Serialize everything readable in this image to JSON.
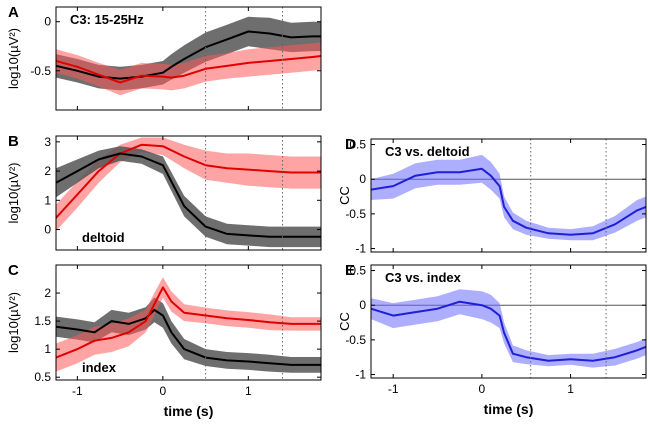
{
  "chart_data": [
    {
      "id": "A",
      "type": "line",
      "panel_letter": "A",
      "title": "C3: 15-25Hz",
      "title_pos": "top-left",
      "xlabel": "",
      "ylabel": "log10(µV²)",
      "xlim": [
        -1.25,
        1.85
      ],
      "ylim": [
        -0.9,
        0.15
      ],
      "xticks": [],
      "xtick_labels": [],
      "yticks": [
        -0.5,
        0
      ],
      "ytick_labels": [
        "-0.5",
        "0"
      ],
      "vlines": [
        0.5,
        1.4
      ],
      "hline": null,
      "series": [
        {
          "name": "black",
          "color": "#000000",
          "band_color": "#555555",
          "band_opacity": 0.85,
          "x": [
            -1.25,
            -1.0,
            -0.75,
            -0.5,
            -0.25,
            0.0,
            0.1,
            0.25,
            0.5,
            0.75,
            1.0,
            1.25,
            1.5,
            1.75,
            1.85
          ],
          "y": [
            -0.45,
            -0.5,
            -0.56,
            -0.58,
            -0.56,
            -0.52,
            -0.46,
            -0.38,
            -0.26,
            -0.18,
            -0.1,
            -0.12,
            -0.16,
            -0.15,
            -0.15
          ],
          "err": [
            0.12,
            0.12,
            0.12,
            0.12,
            0.12,
            0.12,
            0.13,
            0.14,
            0.15,
            0.15,
            0.15,
            0.16,
            0.15,
            0.15,
            0.15
          ]
        },
        {
          "name": "red",
          "color": "#e00000",
          "band_color": "#ff5a5a",
          "band_opacity": 0.55,
          "x": [
            -1.25,
            -1.0,
            -0.75,
            -0.5,
            -0.25,
            0.0,
            0.1,
            0.25,
            0.5,
            0.75,
            1.0,
            1.25,
            1.5,
            1.75,
            1.85
          ],
          "y": [
            -0.4,
            -0.46,
            -0.54,
            -0.62,
            -0.55,
            -0.56,
            -0.57,
            -0.55,
            -0.48,
            -0.45,
            -0.42,
            -0.4,
            -0.38,
            -0.36,
            -0.35
          ],
          "err": [
            0.12,
            0.12,
            0.12,
            0.13,
            0.13,
            0.13,
            0.13,
            0.13,
            0.13,
            0.13,
            0.14,
            0.14,
            0.14,
            0.14,
            0.14
          ]
        }
      ]
    },
    {
      "id": "B",
      "type": "line",
      "panel_letter": "B",
      "title": "deltoid",
      "title_pos": "bottom-left",
      "xlabel": "",
      "ylabel": "log10(µV²)",
      "xlim": [
        -1.25,
        1.85
      ],
      "ylim": [
        -0.7,
        3.2
      ],
      "xticks": [],
      "xtick_labels": [],
      "yticks": [
        0,
        1,
        2,
        3
      ],
      "ytick_labels": [
        "0",
        "1",
        "2",
        "3"
      ],
      "vlines": [
        0.5,
        1.4
      ],
      "hline": null,
      "series": [
        {
          "name": "red",
          "color": "#e00000",
          "band_color": "#ff5a5a",
          "band_opacity": 0.55,
          "x": [
            -1.25,
            -1.0,
            -0.75,
            -0.5,
            -0.25,
            0.0,
            0.25,
            0.5,
            0.75,
            1.0,
            1.25,
            1.5,
            1.75,
            1.85
          ],
          "y": [
            0.4,
            1.2,
            2.0,
            2.6,
            2.9,
            2.85,
            2.5,
            2.2,
            2.1,
            2.05,
            2.0,
            1.95,
            1.95,
            1.95
          ],
          "err": [
            0.45,
            0.45,
            0.4,
            0.3,
            0.25,
            0.3,
            0.4,
            0.5,
            0.5,
            0.55,
            0.55,
            0.55,
            0.55,
            0.55
          ]
        },
        {
          "name": "black",
          "color": "#000000",
          "band_color": "#555555",
          "band_opacity": 0.85,
          "x": [
            -1.25,
            -1.0,
            -0.75,
            -0.5,
            -0.25,
            0.0,
            0.25,
            0.5,
            0.75,
            1.0,
            1.25,
            1.5,
            1.75,
            1.85
          ],
          "y": [
            1.6,
            2.0,
            2.4,
            2.6,
            2.5,
            2.2,
            0.8,
            0.1,
            -0.15,
            -0.2,
            -0.25,
            -0.25,
            -0.25,
            -0.25
          ],
          "err": [
            0.5,
            0.4,
            0.3,
            0.25,
            0.25,
            0.3,
            0.35,
            0.35,
            0.35,
            0.35,
            0.35,
            0.35,
            0.35,
            0.35
          ]
        }
      ]
    },
    {
      "id": "C",
      "type": "line",
      "panel_letter": "C",
      "title": "index",
      "title_pos": "bottom-left",
      "xlabel": "time (s)",
      "ylabel": "log10(µV²)",
      "xlim": [
        -1.25,
        1.85
      ],
      "ylim": [
        0.45,
        2.5
      ],
      "xticks": [
        -1,
        0,
        1
      ],
      "xtick_labels": [
        "-1",
        "0",
        "1"
      ],
      "yticks": [
        0.5,
        1,
        1.5,
        2
      ],
      "ytick_labels": [
        "0.5",
        "1",
        "1.5",
        "2"
      ],
      "vlines": [
        0.5,
        1.4
      ],
      "hline": null,
      "series": [
        {
          "name": "black",
          "color": "#000000",
          "band_color": "#555555",
          "band_opacity": 0.85,
          "x": [
            -1.25,
            -1.0,
            -0.8,
            -0.6,
            -0.4,
            -0.2,
            -0.1,
            0.0,
            0.1,
            0.25,
            0.5,
            0.75,
            1.0,
            1.25,
            1.5,
            1.75,
            1.85
          ],
          "y": [
            1.4,
            1.35,
            1.3,
            1.5,
            1.45,
            1.55,
            1.7,
            1.6,
            1.3,
            1.0,
            0.85,
            0.8,
            0.78,
            0.75,
            0.72,
            0.72,
            0.72
          ],
          "err": [
            0.18,
            0.18,
            0.18,
            0.2,
            0.2,
            0.2,
            0.22,
            0.22,
            0.2,
            0.18,
            0.15,
            0.15,
            0.15,
            0.15,
            0.14,
            0.14,
            0.14
          ]
        },
        {
          "name": "red",
          "color": "#e00000",
          "band_color": "#ff5a5a",
          "band_opacity": 0.55,
          "x": [
            -1.25,
            -1.0,
            -0.8,
            -0.6,
            -0.4,
            -0.2,
            -0.1,
            0.0,
            0.1,
            0.25,
            0.5,
            0.75,
            1.0,
            1.25,
            1.5,
            1.75,
            1.85
          ],
          "y": [
            0.85,
            1.0,
            1.15,
            1.2,
            1.3,
            1.5,
            1.8,
            2.1,
            1.85,
            1.65,
            1.6,
            1.55,
            1.52,
            1.48,
            1.45,
            1.45,
            1.45
          ],
          "err": [
            0.25,
            0.25,
            0.25,
            0.25,
            0.25,
            0.2,
            0.2,
            0.18,
            0.18,
            0.15,
            0.14,
            0.14,
            0.14,
            0.14,
            0.12,
            0.12,
            0.12
          ]
        }
      ]
    },
    {
      "id": "D",
      "type": "line",
      "panel_letter": "D",
      "title": "C3 vs. deltoid",
      "title_pos": "top-left",
      "xlabel": "",
      "ylabel": "CC",
      "xlim": [
        -1.25,
        1.85
      ],
      "ylim": [
        -1.05,
        0.58
      ],
      "xticks": [],
      "xtick_labels": [],
      "yticks": [
        -1,
        -0.5,
        0,
        0.5
      ],
      "ytick_labels": [
        "-1",
        "-0.5",
        "0",
        "0.5"
      ],
      "vlines": [
        0.55,
        1.4
      ],
      "hline": 0,
      "series": [
        {
          "name": "blue",
          "color": "#1f1fd6",
          "band_color": "#6b6bff",
          "band_opacity": 0.55,
          "x": [
            -1.25,
            -1.0,
            -0.75,
            -0.5,
            -0.25,
            0.0,
            0.1,
            0.2,
            0.25,
            0.35,
            0.5,
            0.75,
            1.0,
            1.25,
            1.5,
            1.75,
            1.85
          ],
          "y": [
            -0.15,
            -0.1,
            0.05,
            0.1,
            0.1,
            0.15,
            0.05,
            -0.1,
            -0.4,
            -0.6,
            -0.7,
            -0.78,
            -0.8,
            -0.78,
            -0.65,
            -0.45,
            -0.4
          ],
          "err": [
            0.15,
            0.18,
            0.18,
            0.18,
            0.18,
            0.2,
            0.2,
            0.18,
            0.15,
            0.12,
            0.1,
            0.08,
            0.08,
            0.1,
            0.12,
            0.15,
            0.15
          ]
        }
      ]
    },
    {
      "id": "E",
      "type": "line",
      "panel_letter": "E",
      "title": "C3 vs. index",
      "title_pos": "top-left",
      "xlabel": "time (s)",
      "ylabel": "CC",
      "xlim": [
        -1.25,
        1.85
      ],
      "ylim": [
        -1.05,
        0.58
      ],
      "xticks": [
        -1,
        0,
        1
      ],
      "xtick_labels": [
        "-1",
        "0",
        "1"
      ],
      "yticks": [
        -1,
        -0.5,
        0,
        0.5
      ],
      "ytick_labels": [
        "-1",
        "-0.5",
        "0",
        "0.5"
      ],
      "vlines": [
        0.55,
        1.4
      ],
      "hline": 0,
      "series": [
        {
          "name": "blue",
          "color": "#1f1fd6",
          "band_color": "#6b6bff",
          "band_opacity": 0.55,
          "x": [
            -1.25,
            -1.0,
            -0.75,
            -0.5,
            -0.25,
            0.0,
            0.1,
            0.2,
            0.25,
            0.35,
            0.5,
            0.75,
            1.0,
            1.25,
            1.5,
            1.75,
            1.85
          ],
          "y": [
            -0.05,
            -0.15,
            -0.1,
            -0.05,
            0.05,
            0.0,
            -0.05,
            -0.15,
            -0.4,
            -0.7,
            -0.75,
            -0.8,
            -0.78,
            -0.8,
            -0.75,
            -0.65,
            -0.6
          ],
          "err": [
            0.15,
            0.18,
            0.18,
            0.18,
            0.18,
            0.2,
            0.2,
            0.18,
            0.15,
            0.12,
            0.1,
            0.08,
            0.08,
            0.1,
            0.12,
            0.12,
            0.12
          ]
        }
      ]
    }
  ]
}
